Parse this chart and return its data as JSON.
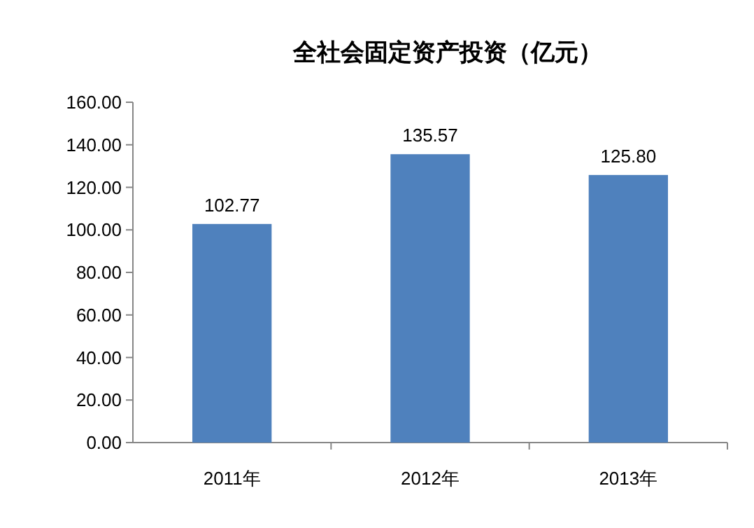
{
  "chart_data": {
    "type": "bar",
    "title": "全社会固定资产投资（亿元）",
    "categories": [
      "2011年",
      "2012年",
      "2013年"
    ],
    "values": [
      102.77,
      135.57,
      125.8
    ],
    "value_labels": [
      "102.77",
      "135.57",
      "125.80"
    ],
    "color": "#4f81bd",
    "ylim": [
      0,
      160
    ],
    "yticks": [
      {
        "value": 0,
        "label": "0.00"
      },
      {
        "value": 20,
        "label": "20.00"
      },
      {
        "value": 40,
        "label": "40.00"
      },
      {
        "value": 60,
        "label": "60.00"
      },
      {
        "value": 80,
        "label": "80.00"
      },
      {
        "value": 100,
        "label": "100.00"
      },
      {
        "value": 120,
        "label": "120.00"
      },
      {
        "value": 140,
        "label": "140.00"
      },
      {
        "value": 160,
        "label": "160.00"
      }
    ]
  }
}
